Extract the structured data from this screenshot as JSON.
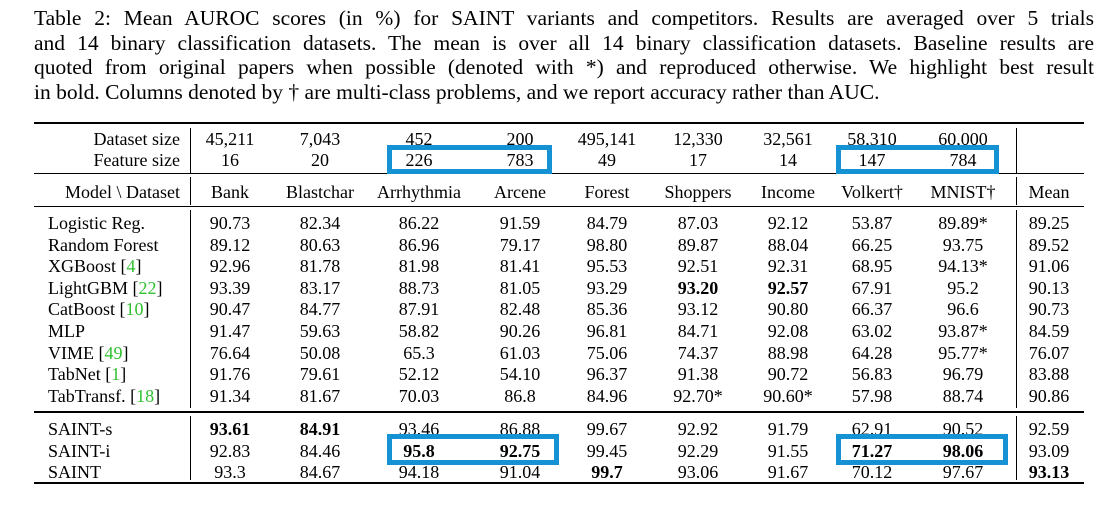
{
  "caption": {
    "lines": [
      "Table 2: Mean AUROC scores (in %) for SAINT variants and competitors. Results are averaged over 5 trials",
      "and 14 binary classification datasets. The mean is over all 14 binary classification datasets. Baseline results are",
      "quoted from original papers when possible (denoted with *) and reproduced otherwise. We highlight best result",
      "in bold. Columns denoted by † are multi-class problems, and we report accuracy rather than AUC."
    ]
  },
  "header": {
    "dataset_size_label": "Dataset size",
    "feature_size_label": "Feature size",
    "dataset_sizes": [
      "45,211",
      "7,043",
      "452",
      "200",
      "495,141",
      "12,330",
      "32,561",
      "58,310",
      "60,000"
    ],
    "feature_sizes": [
      "16",
      "20",
      "226",
      "783",
      "49",
      "17",
      "14",
      "147",
      "784"
    ],
    "corner_label": "Model \\ Dataset",
    "columns": [
      "Bank",
      "Blastchar",
      "Arrhythmia",
      "Arcene",
      "Forest",
      "Shoppers",
      "Income",
      "Volkert†",
      "MNIST†",
      "Mean"
    ]
  },
  "baselines": [
    {
      "name": "Logistic Reg.",
      "cite": "",
      "values": [
        "90.73",
        "82.34",
        "86.22",
        "91.59",
        "84.79",
        "87.03",
        "92.12",
        "53.87",
        "89.89*",
        "89.25"
      ],
      "bold": []
    },
    {
      "name": "Random Forest",
      "cite": "",
      "values": [
        "89.12",
        "80.63",
        "86.96",
        "79.17",
        "98.80",
        "89.87",
        "88.04",
        "66.25",
        "93.75",
        "89.52"
      ],
      "bold": []
    },
    {
      "name": "XGBoost",
      "cite": "4",
      "values": [
        "92.96",
        "81.78",
        "81.98",
        "81.41",
        "95.53",
        "92.51",
        "92.31",
        "68.95",
        "94.13*",
        "91.06"
      ],
      "bold": []
    },
    {
      "name": "LightGBM",
      "cite": "22",
      "values": [
        "93.39",
        "83.17",
        "88.73",
        "81.05",
        "93.29",
        "93.20",
        "92.57",
        "67.91",
        "95.2",
        "90.13"
      ],
      "bold": [
        5,
        6
      ]
    },
    {
      "name": "CatBoost",
      "cite": "10",
      "values": [
        "90.47",
        "84.77",
        "87.91",
        "82.48",
        "85.36",
        "93.12",
        "90.80",
        "66.37",
        "96.6",
        "90.73"
      ],
      "bold": []
    },
    {
      "name": "MLP",
      "cite": "",
      "values": [
        "91.47",
        "59.63",
        "58.82",
        "90.26",
        "96.81",
        "84.71",
        "92.08",
        "63.02",
        "93.87*",
        "84.59"
      ],
      "bold": []
    },
    {
      "name": "VIME",
      "cite": "49",
      "values": [
        "76.64",
        "50.08",
        "65.3",
        "61.03",
        "75.06",
        "74.37",
        "88.98",
        "64.28",
        "95.77*",
        "76.07"
      ],
      "bold": []
    },
    {
      "name": "TabNet",
      "cite": "1",
      "values": [
        "91.76",
        "79.61",
        "52.12",
        "54.10",
        "96.37",
        "91.38",
        "90.72",
        "56.83",
        "96.79",
        "83.88"
      ],
      "bold": []
    },
    {
      "name": "TabTransf.",
      "cite": "18",
      "values": [
        "91.34",
        "81.67",
        "70.03",
        "86.8",
        "84.96",
        "92.70*",
        "90.60*",
        "57.98",
        "88.74",
        "90.86"
      ],
      "bold": []
    }
  ],
  "saint": [
    {
      "name": "SAINT-s",
      "cite": "",
      "values": [
        "93.61",
        "84.91",
        "93.46",
        "86.88",
        "99.67",
        "92.92",
        "91.79",
        "62.91",
        "90.52",
        "92.59"
      ],
      "bold": [
        0,
        1
      ]
    },
    {
      "name": "SAINT-i",
      "cite": "",
      "values": [
        "92.83",
        "84.46",
        "95.8",
        "92.75",
        "99.45",
        "92.29",
        "91.55",
        "71.27",
        "98.06",
        "93.09"
      ],
      "bold": [
        2,
        3,
        7,
        8
      ]
    },
    {
      "name": "SAINT",
      "cite": "",
      "values": [
        "93.3",
        "84.67",
        "94.18",
        "91.04",
        "99.7",
        "93.06",
        "91.67",
        "70.12",
        "97.67",
        "93.13"
      ],
      "bold": [
        4,
        9
      ]
    }
  ],
  "accent_color": "#1592d4",
  "cite_color": "#2fc12f"
}
